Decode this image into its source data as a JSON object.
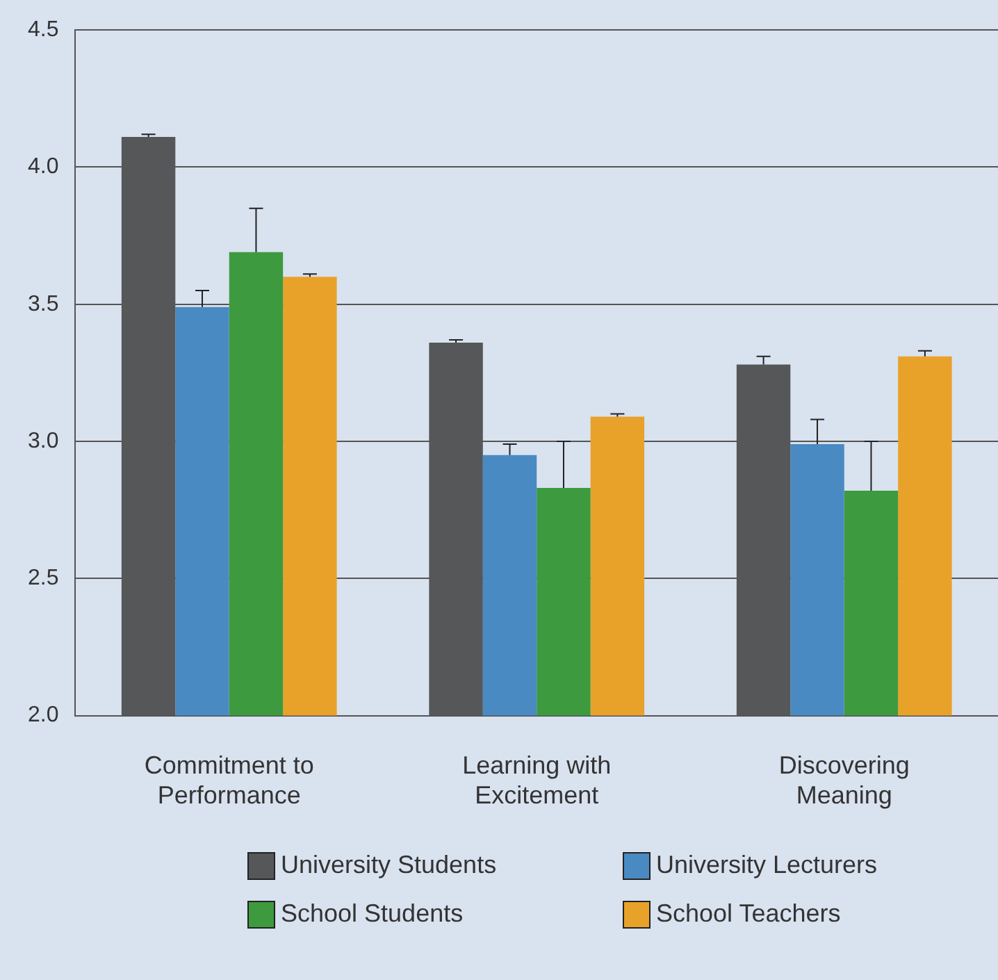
{
  "chart_data": {
    "type": "bar",
    "categories": [
      "Commitment to Performance",
      "Learning with Excitement",
      "Discovering Meaning"
    ],
    "series": [
      {
        "name": "University Students",
        "color": "#555759",
        "values": [
          4.11,
          3.36,
          3.28
        ],
        "errors": [
          [
            4.11,
            4.12
          ],
          [
            3.36,
            3.37
          ],
          [
            3.28,
            3.31
          ]
        ]
      },
      {
        "name": "University Lecturers",
        "color": "#4a8ac2",
        "values": [
          3.49,
          2.95,
          2.99
        ],
        "errors": [
          [
            3.49,
            3.55
          ],
          [
            2.95,
            2.99
          ],
          [
            2.99,
            3.08
          ]
        ]
      },
      {
        "name": "School Students",
        "color": "#3e9a3e",
        "values": [
          3.69,
          2.83,
          2.82
        ],
        "errors": [
          [
            3.69,
            3.85
          ],
          [
            2.83,
            3.0
          ],
          [
            2.82,
            3.0
          ]
        ]
      },
      {
        "name": "School Teachers",
        "color": "#e8a22a",
        "values": [
          3.6,
          3.09,
          3.31
        ],
        "errors": [
          [
            3.6,
            3.61
          ],
          [
            3.09,
            3.1
          ],
          [
            3.31,
            3.33
          ]
        ]
      }
    ],
    "ylim": [
      2.0,
      4.5
    ],
    "yticks": [
      {
        "value": 2,
        "label": "2.0"
      },
      2.5,
      {
        "value": 3,
        "label": "3.0"
      },
      3.5,
      {
        "value": 4,
        "label": "4.0"
      },
      4.5
    ],
    "grid": "y",
    "legend": "bottom"
  }
}
